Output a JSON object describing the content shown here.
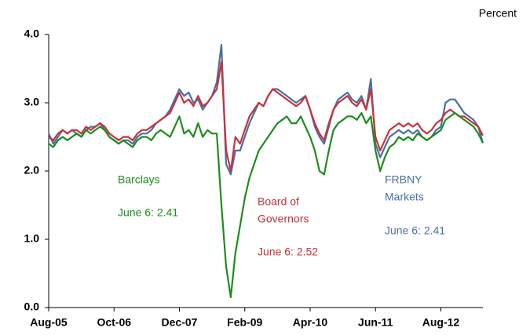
{
  "chart_data": {
    "type": "line",
    "y_unit": "Percent",
    "xlim": [
      "2005-08",
      "2013-05"
    ],
    "xticks": [
      {
        "value": "2005-08",
        "label": "Aug-05"
      },
      {
        "value": "2006-10",
        "label": "Oct-06"
      },
      {
        "value": "2007-12",
        "label": "Dec-07"
      },
      {
        "value": "2009-02",
        "label": "Feb-09"
      },
      {
        "value": "2010-04",
        "label": "Apr-10"
      },
      {
        "value": "2011-06",
        "label": "Jun-11"
      },
      {
        "value": "2012-08",
        "label": "Aug-12"
      }
    ],
    "ylim": [
      0,
      4
    ],
    "yticks": [
      {
        "value": 0,
        "label": "0.0"
      },
      {
        "value": 1,
        "label": "1.0"
      },
      {
        "value": 2,
        "label": "2.0"
      },
      {
        "value": 3,
        "label": "3.0"
      },
      {
        "value": 4,
        "label": "4.0"
      }
    ],
    "x_start": "2005-08",
    "series": [
      {
        "name": "Barclays",
        "color": "#1e8c1e",
        "values": [
          2.4,
          2.35,
          2.45,
          2.5,
          2.45,
          2.5,
          2.55,
          2.5,
          2.6,
          2.55,
          2.6,
          2.65,
          2.6,
          2.5,
          2.45,
          2.4,
          2.45,
          2.4,
          2.35,
          2.45,
          2.5,
          2.5,
          2.45,
          2.55,
          2.6,
          2.55,
          2.5,
          2.65,
          2.8,
          2.55,
          2.6,
          2.5,
          2.7,
          2.5,
          2.6,
          2.55,
          2.55,
          1.5,
          0.6,
          0.15,
          0.8,
          1.2,
          1.6,
          1.9,
          2.1,
          2.3,
          2.4,
          2.5,
          2.6,
          2.7,
          2.75,
          2.8,
          2.7,
          2.7,
          2.8,
          2.65,
          2.5,
          2.3,
          2.0,
          1.95,
          2.3,
          2.6,
          2.7,
          2.75,
          2.8,
          2.8,
          2.75,
          2.85,
          2.7,
          2.8,
          2.3,
          2.0,
          2.2,
          2.35,
          2.4,
          2.5,
          2.45,
          2.5,
          2.45,
          2.55,
          2.5,
          2.45,
          2.5,
          2.55,
          2.6,
          2.75,
          2.8,
          2.85,
          2.8,
          2.75,
          2.7,
          2.65,
          2.55,
          2.41
        ]
      },
      {
        "name": "Board of Governors",
        "color": "#c8323c",
        "values": [
          2.5,
          2.45,
          2.55,
          2.6,
          2.55,
          2.6,
          2.6,
          2.55,
          2.65,
          2.6,
          2.65,
          2.7,
          2.65,
          2.55,
          2.5,
          2.45,
          2.5,
          2.5,
          2.45,
          2.55,
          2.6,
          2.6,
          2.65,
          2.7,
          2.75,
          2.8,
          2.85,
          3.0,
          3.15,
          3.0,
          3.05,
          2.95,
          3.1,
          2.95,
          3.0,
          3.1,
          3.2,
          3.6,
          2.3,
          2.0,
          2.5,
          2.4,
          2.6,
          2.8,
          2.9,
          3.0,
          2.95,
          3.1,
          3.2,
          3.15,
          3.1,
          3.05,
          3.0,
          2.95,
          3.0,
          3.1,
          2.9,
          2.7,
          2.55,
          2.45,
          2.7,
          2.9,
          3.0,
          3.05,
          3.1,
          3.0,
          2.95,
          3.05,
          2.9,
          3.2,
          2.5,
          2.3,
          2.45,
          2.6,
          2.65,
          2.7,
          2.65,
          2.7,
          2.65,
          2.7,
          2.6,
          2.55,
          2.6,
          2.7,
          2.75,
          2.85,
          2.9,
          2.85,
          2.8,
          2.8,
          2.75,
          2.7,
          2.65,
          2.52
        ]
      },
      {
        "name": "FRBNY Markets",
        "color": "#4a6fa5",
        "values": [
          2.55,
          2.4,
          2.5,
          2.6,
          2.55,
          2.6,
          2.55,
          2.5,
          2.6,
          2.65,
          2.65,
          2.7,
          2.6,
          2.5,
          2.45,
          2.4,
          2.45,
          2.45,
          2.4,
          2.5,
          2.55,
          2.55,
          2.6,
          2.7,
          2.75,
          2.8,
          2.9,
          3.05,
          3.2,
          3.1,
          3.15,
          3.0,
          3.05,
          2.9,
          3.0,
          3.1,
          3.3,
          3.85,
          2.1,
          1.95,
          2.3,
          2.3,
          2.5,
          2.7,
          2.85,
          3.0,
          2.95,
          3.1,
          3.2,
          3.2,
          3.15,
          3.1,
          3.05,
          3.0,
          3.05,
          3.1,
          2.9,
          2.65,
          2.5,
          2.4,
          2.65,
          2.9,
          3.05,
          3.1,
          3.15,
          3.05,
          3.0,
          3.1,
          2.9,
          3.35,
          2.4,
          2.2,
          2.35,
          2.5,
          2.55,
          2.6,
          2.55,
          2.6,
          2.55,
          2.6,
          2.5,
          2.45,
          2.5,
          2.6,
          2.65,
          3.0,
          3.05,
          3.05,
          2.95,
          2.85,
          2.8,
          2.75,
          2.65,
          2.41
        ]
      }
    ],
    "annotations": [
      {
        "text": "Barclays",
        "color": "#1e8c1e"
      },
      {
        "text": "June 6: 2.41",
        "color": "#1e8c1e"
      },
      {
        "text": "Board of",
        "color": "#c8323c"
      },
      {
        "text": "Governors",
        "color": "#c8323c"
      },
      {
        "text": "June 6: 2.52",
        "color": "#c8323c"
      },
      {
        "text": "FRBNY",
        "color": "#4a6fa5"
      },
      {
        "text": "Markets",
        "color": "#4a6fa5"
      },
      {
        "text": "June 6: 2.41",
        "color": "#4a6fa5"
      }
    ]
  }
}
